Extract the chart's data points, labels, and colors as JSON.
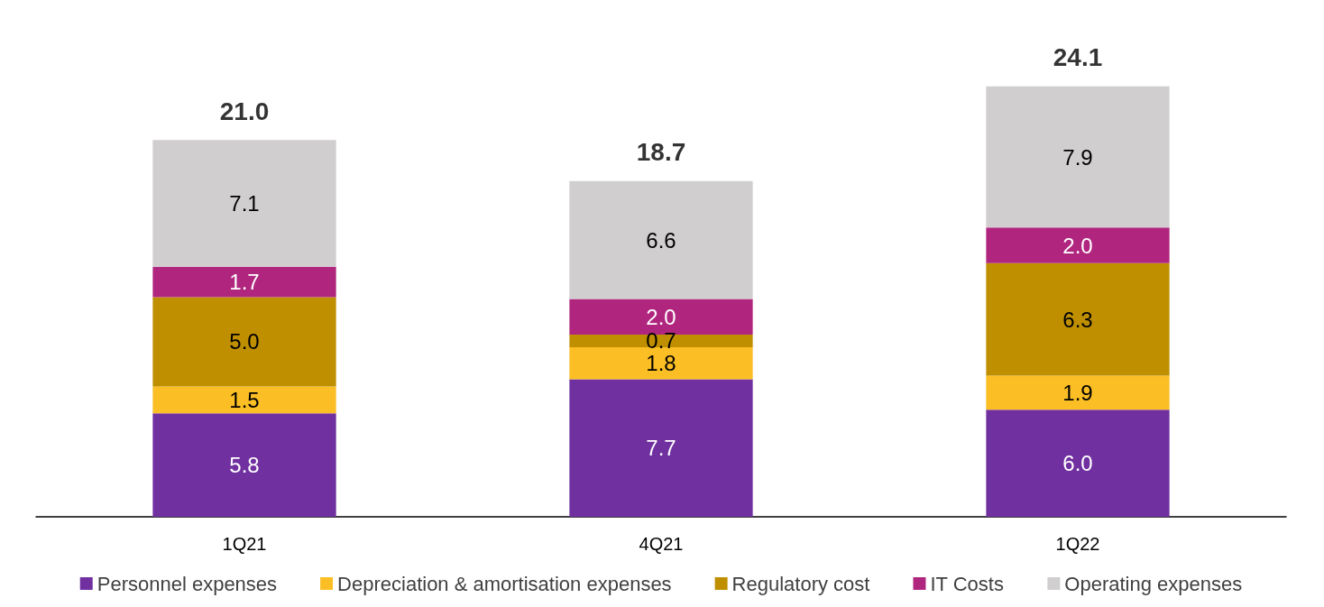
{
  "chart_data": {
    "type": "bar",
    "stacked": true,
    "categories": [
      "1Q21",
      "4Q21",
      "1Q22"
    ],
    "series": [
      {
        "name": "Personnel expenses",
        "color": "#7030a0",
        "values": [
          5.8,
          7.7,
          6.0
        ],
        "value_labels": [
          "5.8",
          "7.7",
          "6.0"
        ]
      },
      {
        "name": "Depreciation & amortisation expenses",
        "color": "#fbbe24",
        "values": [
          1.5,
          1.8,
          1.9
        ],
        "value_labels": [
          "1.5",
          "1.8",
          "1.9"
        ]
      },
      {
        "name": "Regulatory cost",
        "color": "#bf8f00",
        "values": [
          5.0,
          0.7,
          6.3
        ],
        "value_labels": [
          "5.0",
          "0.7",
          "6.3"
        ]
      },
      {
        "name": "IT Costs",
        "color": "#b0267f",
        "values": [
          1.7,
          2.0,
          2.0
        ],
        "value_labels": [
          "1.7",
          "2.0",
          "2.0"
        ]
      },
      {
        "name": "Operating expenses",
        "color": "#d0cecf",
        "values": [
          7.1,
          6.6,
          7.9
        ],
        "value_labels": [
          "7.1",
          "6.6",
          "7.9"
        ]
      }
    ],
    "totals": [
      "21.0",
      "18.7",
      "24.1"
    ],
    "legend": "bottom"
  }
}
